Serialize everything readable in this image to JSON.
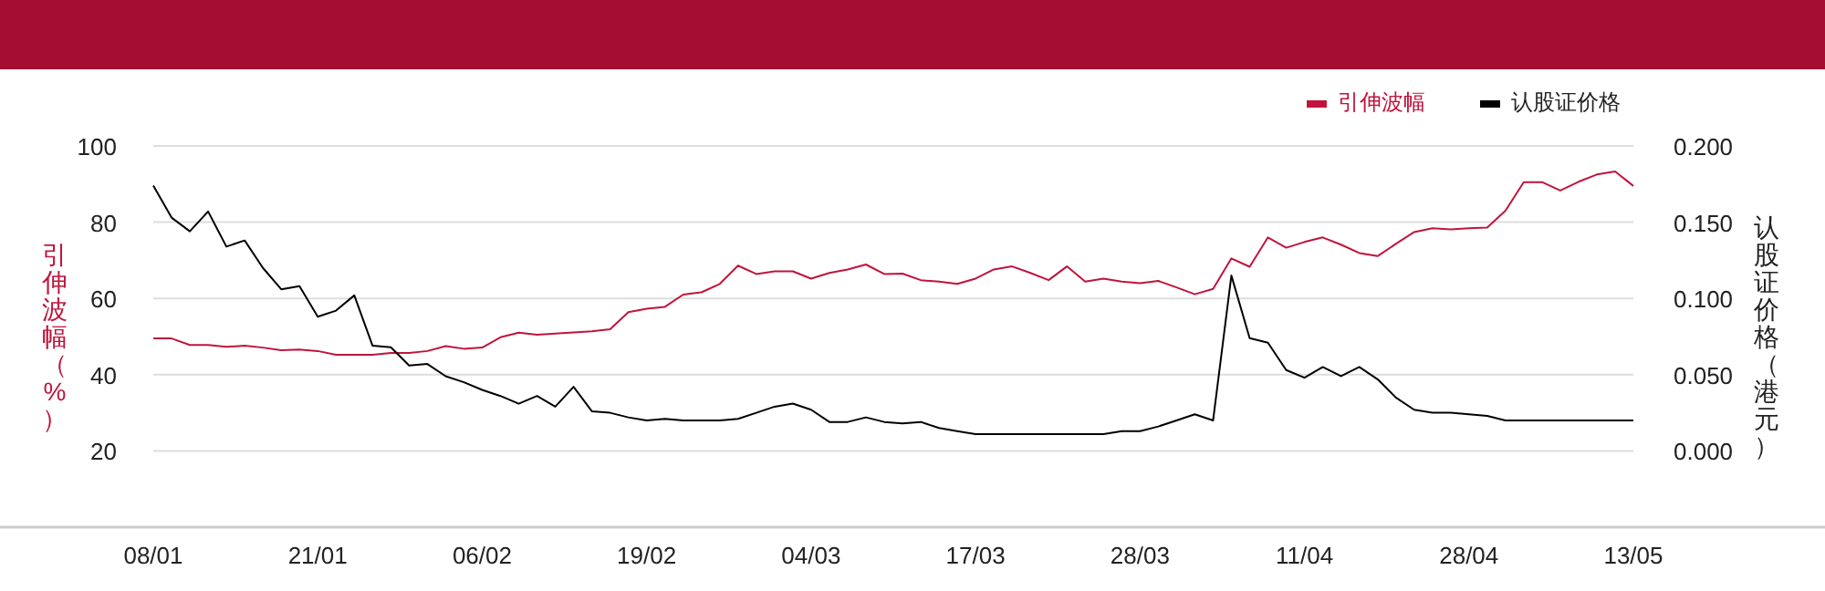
{
  "chart_data": {
    "type": "line",
    "categories": [
      "08/01",
      null,
      null,
      null,
      null,
      null,
      null,
      null,
      null,
      "21/01",
      null,
      null,
      null,
      null,
      null,
      null,
      null,
      null,
      "06/02",
      null,
      null,
      null,
      null,
      null,
      null,
      null,
      null,
      "19/02",
      null,
      null,
      null,
      null,
      null,
      null,
      null,
      null,
      "04/03",
      null,
      null,
      null,
      null,
      null,
      null,
      null,
      null,
      "17/03",
      null,
      null,
      null,
      null,
      null,
      null,
      null,
      null,
      "28/03",
      null,
      null,
      null,
      null,
      null,
      null,
      null,
      null,
      "11/04",
      null,
      null,
      null,
      null,
      null,
      null,
      null,
      null,
      "28/04",
      null,
      null,
      null,
      null,
      null,
      null,
      null,
      null,
      "13/05"
    ],
    "series": [
      {
        "name": "引伸波幅",
        "color": "#c0143c",
        "values": [
          49.5,
          49.5,
          47.8,
          47.8,
          47.3,
          47.6,
          47.1,
          46.4,
          46.6,
          46.2,
          45.2,
          45.2,
          45.2,
          45.7,
          45.7,
          46.2,
          47.5,
          46.8,
          47.1,
          49.8,
          51.0,
          50.5,
          50.8,
          51.1,
          51.4,
          51.9,
          56.4,
          57.3,
          57.8,
          61.0,
          61.6,
          63.8,
          68.6,
          66.4,
          67.1,
          67.1,
          65.2,
          66.7,
          67.6,
          68.9,
          66.4,
          66.5,
          64.8,
          64.4,
          63.8,
          65.2,
          67.6,
          68.4,
          66.7,
          64.8,
          68.4,
          64.4,
          65.2,
          64.4,
          64.0,
          64.6,
          62.9,
          61.1,
          62.5,
          70.5,
          68.3,
          76.0,
          73.3,
          74.8,
          76.0,
          74.1,
          71.9,
          71.1,
          74.3,
          77.4,
          78.4,
          78.1,
          78.4,
          78.6,
          83.0,
          90.5,
          90.5,
          88.3,
          90.6,
          92.5,
          93.3,
          89.5
        ]
      },
      {
        "name": "认股证价格",
        "color": "#000000",
        "axis": "y2",
        "values": [
          0.174,
          0.153,
          0.144,
          0.157,
          0.134,
          0.138,
          0.12,
          0.106,
          0.108,
          0.088,
          0.092,
          0.102,
          0.069,
          0.068,
          0.056,
          0.057,
          0.049,
          0.045,
          0.04,
          0.036,
          0.031,
          0.036,
          0.029,
          0.042,
          0.026,
          0.025,
          0.022,
          0.02,
          0.021,
          0.02,
          0.02,
          0.02,
          0.021,
          0.025,
          0.029,
          0.031,
          0.027,
          0.019,
          0.019,
          0.022,
          0.019,
          0.018,
          0.019,
          0.015,
          0.013,
          0.011,
          0.011,
          0.011,
          0.011,
          0.011,
          0.011,
          0.011,
          0.011,
          0.013,
          0.013,
          0.016,
          0.02,
          0.024,
          0.02,
          0.115,
          0.074,
          0.071,
          0.053,
          0.048,
          0.055,
          0.049,
          0.055,
          0.047,
          0.035,
          0.027,
          0.025,
          0.025,
          0.024,
          0.023,
          0.02,
          0.02,
          0.02,
          0.02,
          0.02,
          0.02,
          0.02,
          0.02
        ]
      }
    ],
    "ylabel": "引伸波幅（%）",
    "y2label": "认股证价格（港元）",
    "ylim": [
      0,
      100
    ],
    "yticks": [
      20,
      40,
      60,
      80,
      100
    ],
    "y2lim": [
      -0.05,
      0.2
    ],
    "y2ticks": [
      {
        "value": 0,
        "label": "0.000"
      },
      {
        "value": 0.05,
        "label": "0.050"
      },
      {
        "value": 0.1,
        "label": "0.100"
      },
      {
        "value": 0.15,
        "label": "0.150"
      },
      {
        "value": 0.2,
        "label": "0.200"
      }
    ],
    "grid": "y",
    "legend": "top right",
    "marker": "none",
    "line_style": "solid"
  }
}
